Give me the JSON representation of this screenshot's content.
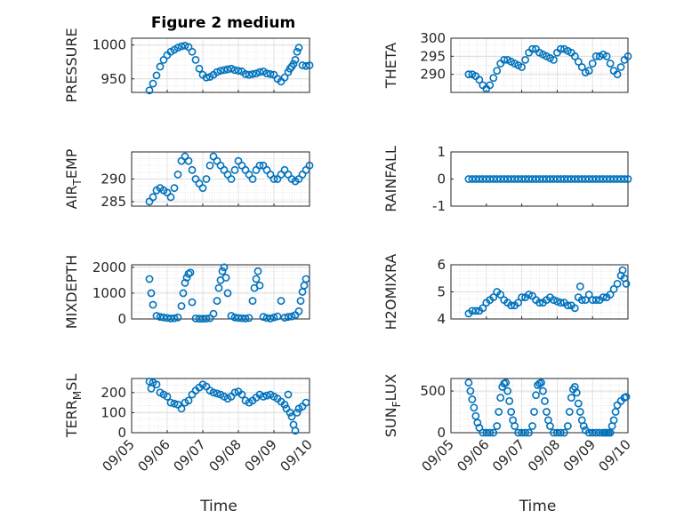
{
  "figure": {
    "title": "Figure 2 medium"
  },
  "colors": {
    "marker": "#0072BD",
    "axis": "#262626",
    "grid": "#dcdcdc"
  },
  "chart_data": [
    {
      "id": "pressure",
      "type": "scatter",
      "ylabel": "PRESSURE",
      "ylim": [
        930,
        1010
      ],
      "yticks": [
        950,
        1000
      ],
      "grid": true,
      "x": [
        0.0,
        0.1,
        0.2,
        0.3,
        0.4,
        0.5,
        0.6,
        0.7,
        0.8,
        0.9,
        1.0,
        1.1,
        1.2,
        1.3,
        1.4,
        1.5,
        1.6,
        1.7,
        1.8,
        1.9,
        2.0,
        2.1,
        2.2,
        2.3,
        2.4,
        2.5,
        2.6,
        2.7,
        2.8,
        2.9,
        3.0,
        3.1,
        3.2,
        3.3,
        3.4,
        3.5,
        3.6,
        3.7,
        3.8,
        3.9,
        3.95,
        4.0,
        4.05,
        4.1,
        4.15,
        4.2,
        4.3,
        4.4,
        4.5
      ],
      "y": [
        933,
        943,
        955,
        968,
        978,
        985,
        990,
        993,
        996,
        998,
        999,
        997,
        990,
        978,
        965,
        956,
        952,
        953,
        956,
        960,
        962,
        963,
        964,
        965,
        963,
        962,
        961,
        957,
        956,
        957,
        958,
        960,
        961,
        958,
        957,
        956,
        950,
        946,
        952,
        960,
        965,
        968,
        972,
        978,
        990,
        996,
        970,
        969,
        970
      ]
    },
    {
      "id": "theta",
      "type": "scatter",
      "ylabel": "THETA",
      "ylim": [
        285,
        300
      ],
      "yticks": [
        290,
        295,
        300
      ],
      "grid": true,
      "x": [
        0.0,
        0.1,
        0.2,
        0.3,
        0.4,
        0.5,
        0.6,
        0.7,
        0.8,
        0.9,
        1.0,
        1.1,
        1.2,
        1.3,
        1.4,
        1.5,
        1.6,
        1.7,
        1.8,
        1.9,
        2.0,
        2.1,
        2.2,
        2.3,
        2.4,
        2.5,
        2.6,
        2.7,
        2.8,
        2.9,
        3.0,
        3.1,
        3.2,
        3.3,
        3.4,
        3.5,
        3.6,
        3.7,
        3.8,
        3.9,
        4.0,
        4.1,
        4.2,
        4.3,
        4.4,
        4.5
      ],
      "y": [
        290,
        290,
        289.5,
        288.5,
        287,
        286,
        287,
        289,
        291,
        293,
        294,
        294,
        293.5,
        293,
        292.5,
        292,
        294,
        296,
        297,
        297,
        296,
        295.5,
        295,
        294.5,
        294,
        296,
        297,
        297,
        296.5,
        296,
        295,
        293.5,
        292,
        290.5,
        291,
        293,
        295,
        295,
        295.5,
        295,
        293,
        291,
        290,
        292,
        294,
        295
      ]
    },
    {
      "id": "airtemp",
      "type": "scatter",
      "ylabel": "AIR_TEMP",
      "ylim": [
        284,
        296
      ],
      "yticks": [
        285,
        290
      ],
      "grid": true,
      "x": [
        0.0,
        0.1,
        0.2,
        0.3,
        0.4,
        0.5,
        0.6,
        0.7,
        0.8,
        0.9,
        1.0,
        1.1,
        1.2,
        1.3,
        1.4,
        1.5,
        1.6,
        1.7,
        1.8,
        1.9,
        2.0,
        2.1,
        2.2,
        2.3,
        2.4,
        2.5,
        2.6,
        2.7,
        2.8,
        2.9,
        3.0,
        3.1,
        3.2,
        3.3,
        3.4,
        3.5,
        3.6,
        3.7,
        3.8,
        3.9,
        4.0,
        4.1,
        4.2,
        4.3,
        4.4,
        4.5
      ],
      "y": [
        285,
        286,
        287.5,
        288,
        287.5,
        287,
        286,
        288,
        291,
        294,
        295,
        294,
        292,
        290,
        289,
        288,
        290,
        293,
        295,
        294,
        293,
        292,
        291,
        290,
        292,
        294,
        293,
        292,
        291,
        290,
        292,
        293,
        293,
        292,
        291,
        290,
        290,
        291,
        292,
        291,
        290,
        289.5,
        290,
        291,
        292,
        293
      ]
    },
    {
      "id": "rainfall",
      "type": "scatter",
      "ylabel": "RAINFALL",
      "ylim": [
        -1,
        1
      ],
      "yticks": [
        -1,
        0,
        1
      ],
      "grid": false,
      "x": [
        0.0,
        0.1,
        0.2,
        0.3,
        0.4,
        0.5,
        0.6,
        0.7,
        0.8,
        0.9,
        1.0,
        1.1,
        1.2,
        1.3,
        1.4,
        1.5,
        1.6,
        1.7,
        1.8,
        1.9,
        2.0,
        2.1,
        2.2,
        2.3,
        2.4,
        2.5,
        2.6,
        2.7,
        2.8,
        2.9,
        3.0,
        3.1,
        3.2,
        3.3,
        3.4,
        3.5,
        3.6,
        3.7,
        3.8,
        3.9,
        4.0,
        4.1,
        4.2,
        4.3,
        4.4,
        4.5
      ],
      "y": [
        0,
        0,
        0,
        0,
        0,
        0,
        0,
        0,
        0,
        0,
        0,
        0,
        0,
        0,
        0,
        0,
        0,
        0,
        0,
        0,
        0,
        0,
        0,
        0,
        0,
        0,
        0,
        0,
        0,
        0,
        0,
        0,
        0,
        0,
        0,
        0,
        0,
        0,
        0,
        0,
        0,
        0,
        0,
        0,
        0,
        0
      ]
    },
    {
      "id": "mixdepth",
      "type": "scatter",
      "ylabel": "MIXDEPTH",
      "ylim": [
        0,
        2100
      ],
      "yticks": [
        0,
        1000,
        2000
      ],
      "grid": true,
      "x": [
        0.0,
        0.05,
        0.1,
        0.2,
        0.3,
        0.4,
        0.5,
        0.6,
        0.7,
        0.8,
        0.9,
        0.95,
        1.0,
        1.05,
        1.1,
        1.15,
        1.2,
        1.3,
        1.4,
        1.5,
        1.6,
        1.7,
        1.8,
        1.9,
        1.95,
        2.0,
        2.05,
        2.1,
        2.15,
        2.2,
        2.3,
        2.4,
        2.5,
        2.6,
        2.7,
        2.8,
        2.9,
        2.95,
        3.0,
        3.05,
        3.1,
        3.2,
        3.3,
        3.4,
        3.5,
        3.6,
        3.7,
        3.8,
        3.9,
        4.0,
        4.1,
        4.2,
        4.25,
        4.3,
        4.35,
        4.4
      ],
      "y": [
        1550,
        1000,
        550,
        120,
        80,
        60,
        40,
        20,
        30,
        60,
        500,
        1000,
        1400,
        1600,
        1750,
        1800,
        650,
        20,
        10,
        10,
        15,
        30,
        200,
        700,
        1200,
        1500,
        1850,
        2000,
        1600,
        1000,
        120,
        60,
        40,
        30,
        20,
        40,
        700,
        1200,
        1550,
        1850,
        1300,
        80,
        40,
        20,
        60,
        100,
        700,
        50,
        80,
        100,
        150,
        300,
        700,
        1050,
        1300,
        1550
      ]
    },
    {
      "id": "h2omixra",
      "type": "scatter",
      "ylabel": "H2OMIXRA",
      "ylim": [
        4,
        6
      ],
      "yticks": [
        4,
        5,
        6
      ],
      "grid": true,
      "x": [
        0.0,
        0.1,
        0.2,
        0.3,
        0.4,
        0.5,
        0.6,
        0.7,
        0.8,
        0.9,
        1.0,
        1.1,
        1.2,
        1.3,
        1.4,
        1.5,
        1.6,
        1.7,
        1.8,
        1.9,
        2.0,
        2.1,
        2.2,
        2.3,
        2.4,
        2.5,
        2.6,
        2.7,
        2.8,
        2.9,
        3.0,
        3.1,
        3.15,
        3.2,
        3.3,
        3.4,
        3.5,
        3.6,
        3.7,
        3.8,
        3.9,
        4.0,
        4.1,
        4.2,
        4.3,
        4.35,
        4.4,
        4.45
      ],
      "y": [
        4.2,
        4.3,
        4.3,
        4.3,
        4.4,
        4.6,
        4.7,
        4.8,
        5.0,
        4.9,
        4.7,
        4.6,
        4.5,
        4.5,
        4.6,
        4.8,
        4.8,
        4.9,
        4.85,
        4.7,
        4.6,
        4.6,
        4.7,
        4.8,
        4.7,
        4.65,
        4.6,
        4.6,
        4.5,
        4.5,
        4.4,
        4.8,
        5.2,
        4.7,
        4.7,
        4.9,
        4.7,
        4.7,
        4.7,
        4.8,
        4.8,
        4.9,
        5.1,
        5.3,
        5.6,
        5.8,
        5.5,
        5.3
      ]
    },
    {
      "id": "terrmsl",
      "type": "scatter",
      "ylabel": "TERR_MSL",
      "ylim": [
        0,
        270
      ],
      "yticks": [
        0,
        100,
        200
      ],
      "grid": true,
      "x": [
        0.0,
        0.05,
        0.1,
        0.2,
        0.3,
        0.4,
        0.5,
        0.6,
        0.7,
        0.8,
        0.9,
        1.0,
        1.1,
        1.2,
        1.3,
        1.4,
        1.5,
        1.6,
        1.7,
        1.8,
        1.9,
        2.0,
        2.1,
        2.2,
        2.3,
        2.4,
        2.5,
        2.6,
        2.7,
        2.8,
        2.9,
        3.0,
        3.1,
        3.2,
        3.3,
        3.4,
        3.5,
        3.6,
        3.7,
        3.8,
        3.85,
        3.9,
        3.95,
        4.0,
        4.05,
        4.1,
        4.15,
        4.2,
        4.3,
        4.4
      ],
      "y": [
        255,
        220,
        250,
        240,
        200,
        190,
        180,
        150,
        145,
        140,
        120,
        150,
        160,
        190,
        210,
        225,
        240,
        230,
        210,
        200,
        195,
        190,
        180,
        170,
        180,
        200,
        205,
        190,
        160,
        150,
        160,
        175,
        190,
        180,
        185,
        190,
        180,
        170,
        155,
        140,
        120,
        190,
        100,
        80,
        40,
        10,
        100,
        120,
        130,
        150
      ]
    },
    {
      "id": "sunflux",
      "type": "scatter",
      "ylabel": "SUN_FLUX",
      "ylim": [
        0,
        650
      ],
      "yticks": [
        0,
        500
      ],
      "grid": true,
      "x": [
        0.0,
        0.05,
        0.1,
        0.15,
        0.2,
        0.25,
        0.3,
        0.4,
        0.5,
        0.6,
        0.7,
        0.8,
        0.85,
        0.9,
        0.95,
        1.0,
        1.05,
        1.1,
        1.15,
        1.2,
        1.25,
        1.3,
        1.4,
        1.5,
        1.6,
        1.7,
        1.8,
        1.85,
        1.9,
        1.95,
        2.0,
        2.05,
        2.1,
        2.15,
        2.2,
        2.25,
        2.3,
        2.4,
        2.5,
        2.6,
        2.7,
        2.8,
        2.85,
        2.9,
        2.95,
        3.0,
        3.05,
        3.1,
        3.15,
        3.2,
        3.25,
        3.3,
        3.4,
        3.5,
        3.6,
        3.7,
        3.8,
        3.85,
        3.9,
        3.95,
        4.0,
        4.05,
        4.1,
        4.15,
        4.2,
        4.3,
        4.4,
        4.45
      ],
      "y": [
        600,
        500,
        400,
        300,
        200,
        120,
        60,
        0,
        0,
        0,
        0,
        80,
        250,
        420,
        550,
        590,
        600,
        500,
        380,
        250,
        150,
        80,
        0,
        0,
        0,
        0,
        80,
        250,
        450,
        570,
        590,
        600,
        500,
        380,
        250,
        150,
        80,
        0,
        0,
        0,
        0,
        80,
        250,
        420,
        520,
        550,
        480,
        350,
        250,
        150,
        80,
        30,
        0,
        0,
        0,
        0,
        0,
        0,
        0,
        0,
        0,
        80,
        150,
        250,
        330,
        380,
        420,
        430
      ]
    }
  ],
  "xaxis": {
    "ticks": [
      "09/05",
      "09/06",
      "09/07",
      "09/08",
      "09/09",
      "09/10"
    ],
    "label": "Time"
  }
}
